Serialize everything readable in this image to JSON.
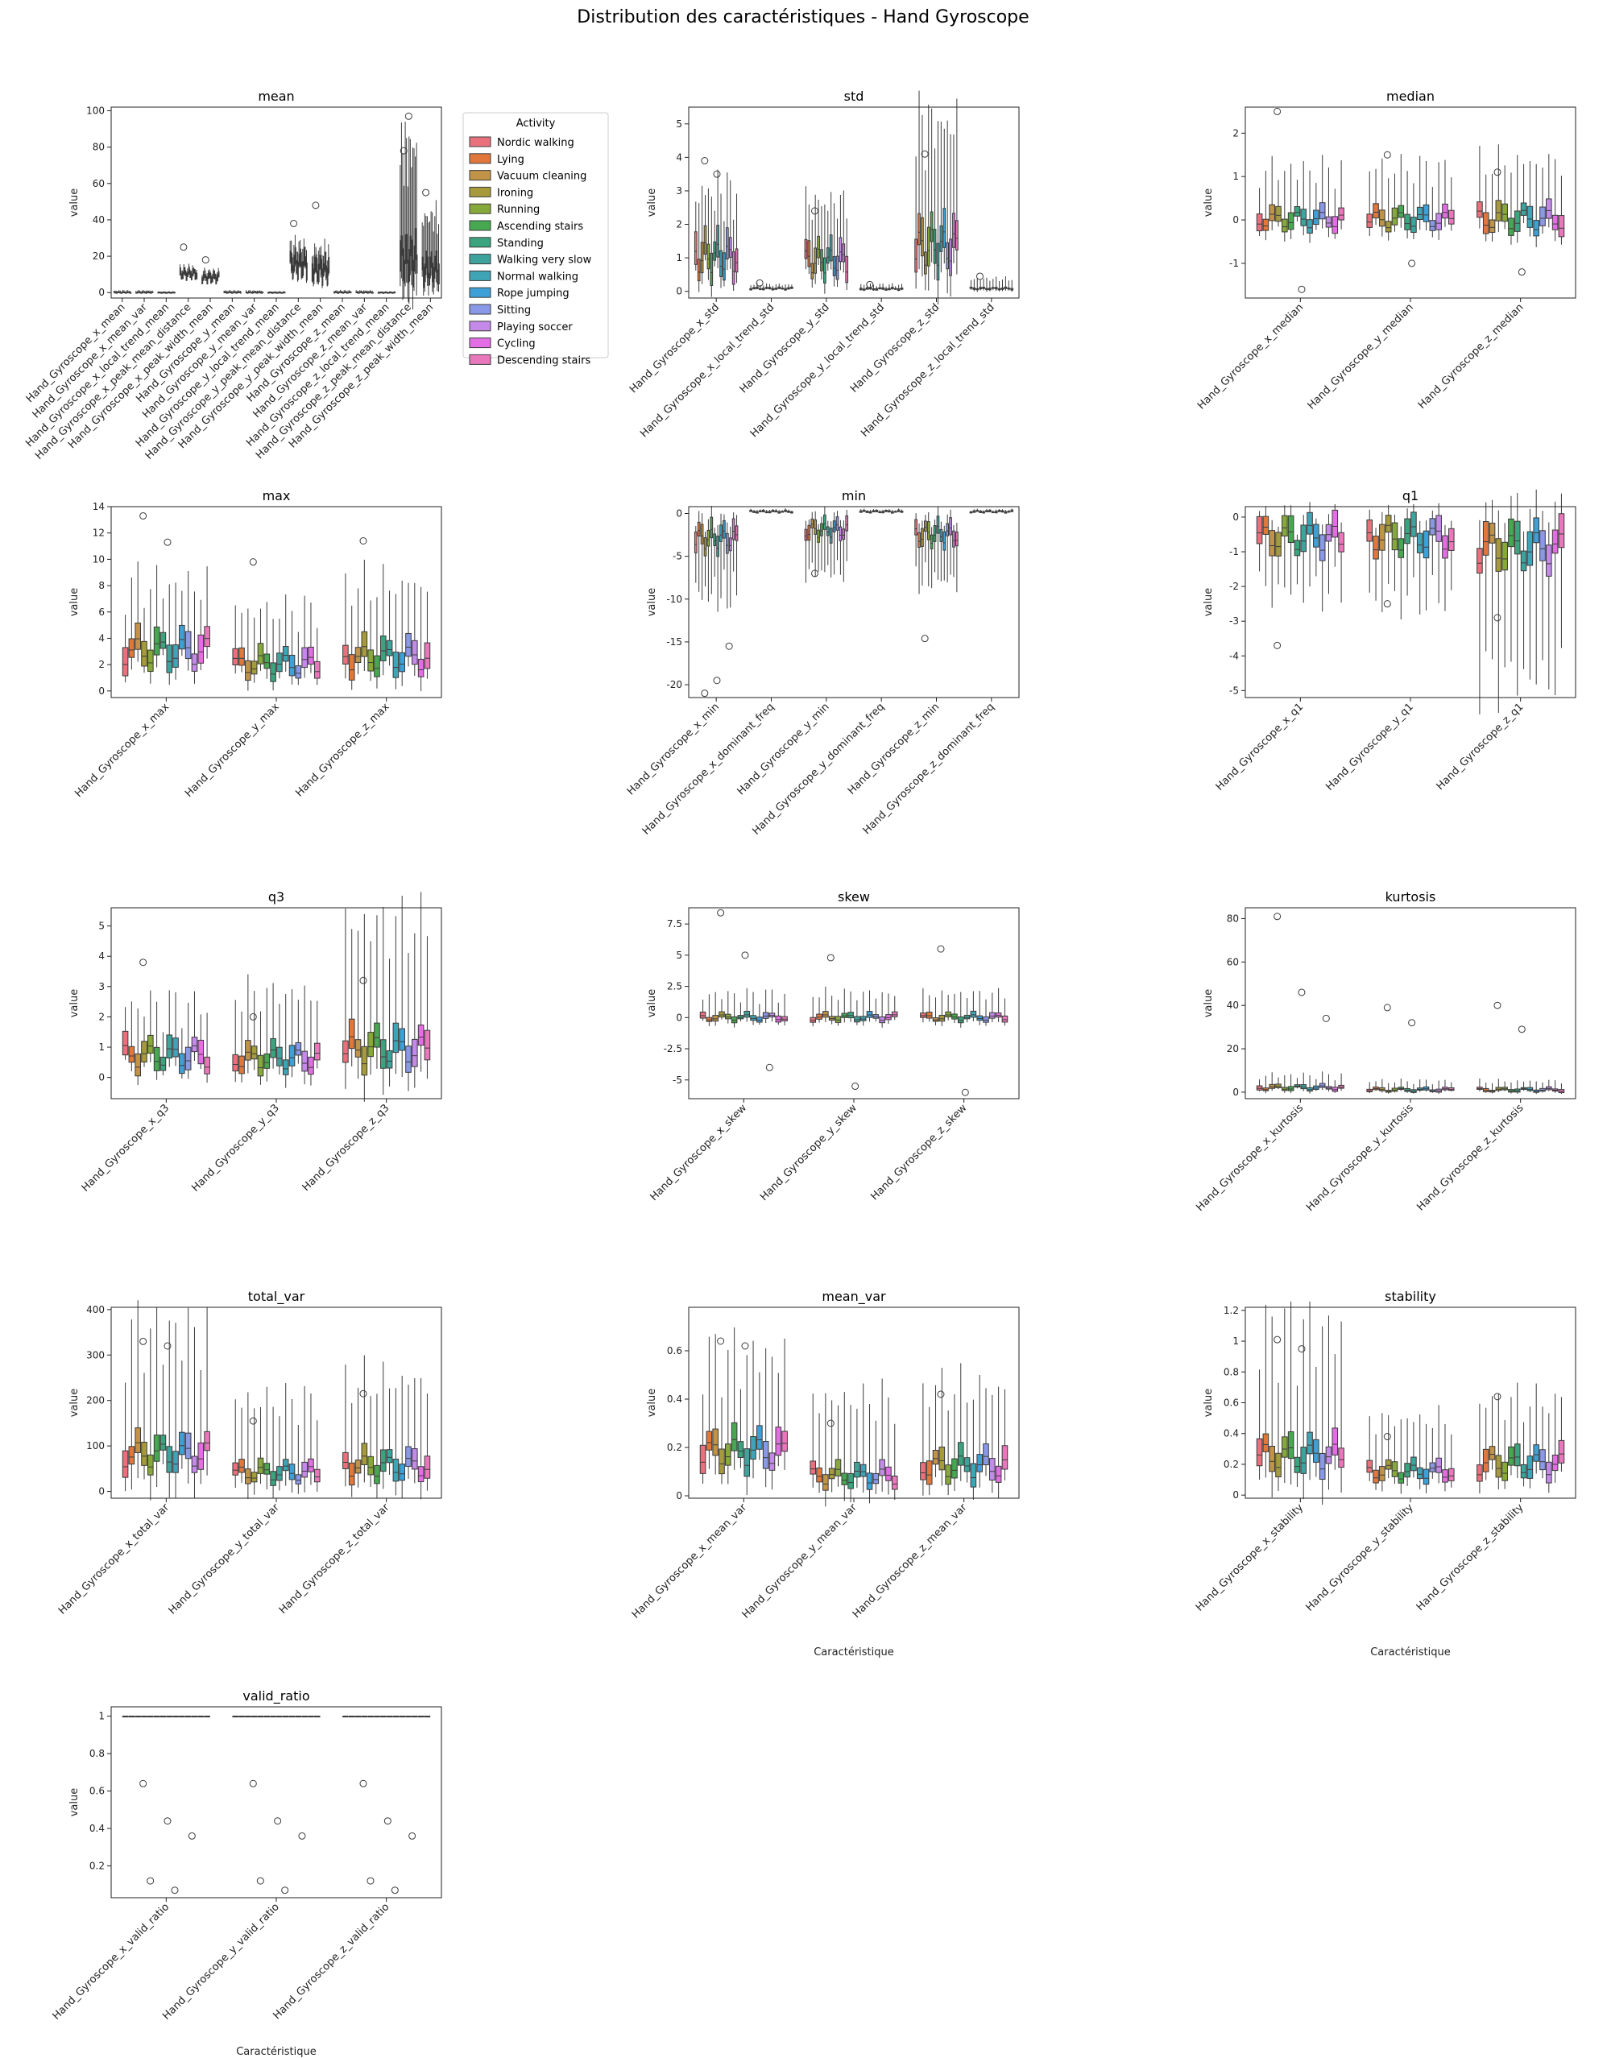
{
  "title": "Distribution des caractéristiques - Hand Gyroscope",
  "legend": {
    "title": "Activity",
    "entries": [
      {
        "name": "Nordic walking",
        "color": "#e9717d"
      },
      {
        "name": "Lying",
        "color": "#e0783c"
      },
      {
        "name": "Vacuum cleaning",
        "color": "#c09347"
      },
      {
        "name": "Ironing",
        "color": "#a69b3a"
      },
      {
        "name": "Running",
        "color": "#87a83b"
      },
      {
        "name": "Ascending stairs",
        "color": "#46a851"
      },
      {
        "name": "Standing",
        "color": "#3ba47e"
      },
      {
        "name": "Walking very slow",
        "color": "#3ea39d"
      },
      {
        "name": "Normal walking",
        "color": "#3fa5b6"
      },
      {
        "name": "Rope jumping",
        "color": "#3da0d6"
      },
      {
        "name": "Sitting",
        "color": "#8a98e8"
      },
      {
        "name": "Playing soccer",
        "color": "#c38ae8"
      },
      {
        "name": "Cycling",
        "color": "#e36ee3"
      },
      {
        "name": "Descending stairs",
        "color": "#e878bb"
      }
    ]
  },
  "chart_data": [
    {
      "type": "box",
      "title": "mean",
      "ylabel": "value",
      "xlabel": "",
      "ylim": [
        -3,
        102
      ],
      "yticks": [
        0,
        20,
        40,
        60,
        80,
        100
      ],
      "categories": [
        "Hand_Gyroscope_x_mean",
        "Hand_Gyroscope_x_mean_var",
        "Hand_Gyroscope_x_local_trend_mean",
        "Hand_Gyroscope_x_peak_mean_distance",
        "Hand_Gyroscope_x_peak_width_mean",
        "Hand_Gyroscope_y_mean",
        "Hand_Gyroscope_y_mean_var",
        "Hand_Gyroscope_y_local_trend_mean",
        "Hand_Gyroscope_y_peak_mean_distance",
        "Hand_Gyroscope_y_peak_width_mean",
        "Hand_Gyroscope_z_mean",
        "Hand_Gyroscope_z_mean_var",
        "Hand_Gyroscope_z_local_trend_mean",
        "Hand_Gyroscope_z_peak_mean_distance",
        "Hand_Gyroscope_z_peak_width_mean"
      ],
      "medians": [
        0,
        0,
        0,
        10,
        8,
        0,
        0,
        0,
        15,
        12,
        0,
        0,
        0,
        17,
        12
      ],
      "spreads": [
        0.5,
        0.5,
        0.3,
        4,
        4,
        0.5,
        0.5,
        0.3,
        10,
        10,
        0.5,
        0.5,
        0.3,
        18,
        12
      ],
      "whiskers": [
        1,
        1,
        0.5,
        12,
        10,
        1,
        1,
        0.5,
        22,
        20,
        1,
        1,
        0.5,
        80,
        40
      ],
      "outliers": [
        [],
        [],
        [],
        [
          25
        ],
        [
          18
        ],
        [],
        [],
        [],
        [
          38
        ],
        [
          48
        ],
        [],
        [],
        [],
        [
          78,
          97
        ],
        [
          55
        ]
      ]
    },
    {
      "type": "box",
      "title": "std",
      "ylabel": "value",
      "xlabel": "",
      "ylim": [
        -0.2,
        5.5
      ],
      "yticks": [
        0,
        1,
        2,
        3,
        4,
        5
      ],
      "categories": [
        "Hand_Gyroscope_x_std",
        "Hand_Gyroscope_x_local_trend_std",
        "Hand_Gyroscope_y_std",
        "Hand_Gyroscope_y_local_trend_std",
        "Hand_Gyroscope_z_std",
        "Hand_Gyroscope_z_local_trend_std"
      ],
      "medians": [
        1.0,
        0.08,
        0.9,
        0.07,
        1.3,
        0.08
      ],
      "spreads": [
        1.0,
        0.05,
        0.8,
        0.05,
        1.2,
        0.05
      ],
      "whiskers": [
        2.8,
        0.2,
        2.5,
        0.2,
        5.0,
        0.4
      ],
      "outliers": [
        [
          3.9,
          3.5
        ],
        [
          0.25
        ],
        [
          2.4
        ],
        [
          0.2
        ],
        [
          4.1
        ],
        [
          0.45
        ]
      ]
    },
    {
      "type": "box",
      "title": "median",
      "ylabel": "value",
      "xlabel": "",
      "ylim": [
        -1.8,
        2.6
      ],
      "yticks": [
        -1,
        0,
        1,
        2
      ],
      "categories": [
        "Hand_Gyroscope_x_median",
        "Hand_Gyroscope_y_median",
        "Hand_Gyroscope_z_median"
      ],
      "medians": [
        0,
        0,
        0
      ],
      "spreads": [
        0.4,
        0.4,
        0.5
      ],
      "whiskers": [
        1.2,
        1.2,
        1.3
      ],
      "outliers": [
        [
          2.5,
          -1.6
        ],
        [
          1.5,
          -1.0
        ],
        [
          1.1,
          -1.2
        ]
      ]
    },
    {
      "type": "box",
      "title": "max",
      "ylabel": "value",
      "xlabel": "",
      "ylim": [
        -0.5,
        14
      ],
      "yticks": [
        0,
        2,
        4,
        6,
        8,
        10,
        12,
        14
      ],
      "categories": [
        "Hand_Gyroscope_x_max",
        "Hand_Gyroscope_y_max",
        "Hand_Gyroscope_z_max"
      ],
      "medians": [
        3.0,
        2.0,
        2.5
      ],
      "spreads": [
        2.2,
        1.6,
        2.0
      ],
      "whiskers": [
        8.0,
        6.0,
        8.0
      ],
      "outliers": [
        [
          13.3,
          11.3
        ],
        [
          9.8
        ],
        [
          11.4
        ]
      ]
    },
    {
      "type": "box",
      "title": "min",
      "ylabel": "value",
      "xlabel": "",
      "ylim": [
        -21.5,
        0.8
      ],
      "yticks": [
        -20,
        -15,
        -10,
        -5,
        0
      ],
      "categories": [
        "Hand_Gyroscope_x_min",
        "Hand_Gyroscope_x_dominant_freq",
        "Hand_Gyroscope_y_min",
        "Hand_Gyroscope_y_dominant_freq",
        "Hand_Gyroscope_z_min",
        "Hand_Gyroscope_z_dominant_freq"
      ],
      "medians": [
        -3.0,
        0.2,
        -2.0,
        0.2,
        -2.5,
        0.2
      ],
      "spreads": [
        2.5,
        0.2,
        1.8,
        0.2,
        2.2,
        0.2
      ],
      "whiskers": [
        -10,
        0.4,
        -7,
        0.4,
        -8,
        0.4
      ],
      "outliers": [
        [
          -21,
          -19.5,
          -15.5
        ],
        [],
        [
          -7
        ],
        [],
        [
          -14.6
        ],
        []
      ]
    },
    {
      "type": "box",
      "title": "q1",
      "ylabel": "value",
      "xlabel": "",
      "ylim": [
        -5.2,
        0.3
      ],
      "yticks": [
        -5,
        -4,
        -3,
        -2,
        -1,
        0
      ],
      "categories": [
        "Hand_Gyroscope_x_q1",
        "Hand_Gyroscope_y_q1",
        "Hand_Gyroscope_z_q1"
      ],
      "medians": [
        -0.6,
        -0.6,
        -0.9
      ],
      "spreads": [
        0.8,
        0.8,
        1.0
      ],
      "whiskers": [
        -2.2,
        -2.4,
        -5.0
      ],
      "outliers": [
        [
          -3.7
        ],
        [
          -2.5
        ],
        [
          -2.9
        ]
      ]
    },
    {
      "type": "box",
      "title": "q3",
      "ylabel": "value",
      "xlabel": "",
      "ylim": [
        -0.7,
        5.6
      ],
      "yticks": [
        0,
        1,
        2,
        3,
        4,
        5
      ],
      "categories": [
        "Hand_Gyroscope_x_q3",
        "Hand_Gyroscope_y_q3",
        "Hand_Gyroscope_z_q3"
      ],
      "medians": [
        0.7,
        0.6,
        0.9
      ],
      "spreads": [
        0.8,
        0.7,
        1.0
      ],
      "whiskers": [
        2.3,
        2.8,
        5.3
      ],
      "outliers": [
        [
          3.8
        ],
        [
          2.0
        ],
        [
          3.2
        ]
      ]
    },
    {
      "type": "box",
      "title": "skew",
      "ylabel": "value",
      "xlabel": "",
      "ylim": [
        -6.5,
        8.8
      ],
      "yticks": [
        -5.0,
        -2.5,
        0.0,
        2.5,
        5.0,
        7.5
      ],
      "categories": [
        "Hand_Gyroscope_x_skew",
        "Hand_Gyroscope_y_skew",
        "Hand_Gyroscope_z_skew"
      ],
      "medians": [
        0,
        0,
        0
      ],
      "spreads": [
        0.5,
        0.5,
        0.5
      ],
      "whiskers": [
        2.0,
        2.0,
        2.0
      ],
      "outliers": [
        [
          8.4,
          5.0,
          -4.0
        ],
        [
          4.8,
          -5.5
        ],
        [
          5.5,
          -6.0
        ]
      ]
    },
    {
      "type": "box",
      "title": "kurtosis",
      "ylabel": "value",
      "xlabel": "",
      "ylim": [
        -3,
        85
      ],
      "yticks": [
        0,
        20,
        40,
        60,
        80
      ],
      "categories": [
        "Hand_Gyroscope_x_kurtosis",
        "Hand_Gyroscope_y_kurtosis",
        "Hand_Gyroscope_z_kurtosis"
      ],
      "medians": [
        2,
        1,
        1
      ],
      "spreads": [
        2,
        1.5,
        1.5
      ],
      "whiskers": [
        8,
        5,
        5
      ],
      "outliers": [
        [
          81,
          46,
          34
        ],
        [
          39,
          32
        ],
        [
          40,
          29
        ]
      ]
    },
    {
      "type": "box",
      "title": "total_var",
      "ylabel": "value",
      "xlabel": "",
      "ylim": [
        -15,
        405
      ],
      "yticks": [
        0,
        100,
        200,
        300,
        400
      ],
      "categories": [
        "Hand_Gyroscope_x_total_var",
        "Hand_Gyroscope_y_total_var",
        "Hand_Gyroscope_z_total_var"
      ],
      "medians": [
        80,
        40,
        55
      ],
      "spreads": [
        60,
        35,
        50
      ],
      "whiskers": [
        380,
        210,
        250
      ],
      "outliers": [
        [
          330,
          320
        ],
        [
          155
        ],
        [
          215
        ]
      ]
    },
    {
      "type": "box",
      "title": "mean_var",
      "ylabel": "value",
      "xlabel": "Caractéristique",
      "ylim": [
        -0.01,
        0.78
      ],
      "yticks": [
        0.0,
        0.2,
        0.4,
        0.6
      ],
      "categories": [
        "Hand_Gyroscope_x_mean_var",
        "Hand_Gyroscope_y_mean_var",
        "Hand_Gyroscope_z_mean_var"
      ],
      "medians": [
        0.18,
        0.08,
        0.12
      ],
      "spreads": [
        0.12,
        0.07,
        0.1
      ],
      "whiskers": [
        0.6,
        0.42,
        0.45
      ],
      "outliers": [
        [
          0.64,
          0.62
        ],
        [
          0.3
        ],
        [
          0.42
        ]
      ]
    },
    {
      "type": "box",
      "title": "stability",
      "ylabel": "value",
      "xlabel": "Caractéristique",
      "ylim": [
        -0.02,
        1.22
      ],
      "yticks": [
        0.0,
        0.2,
        0.4,
        0.6,
        0.8,
        1.0,
        1.2
      ],
      "categories": [
        "Hand_Gyroscope_x_stability",
        "Hand_Gyroscope_y_stability",
        "Hand_Gyroscope_z_stability"
      ],
      "medians": [
        0.25,
        0.15,
        0.2
      ],
      "spreads": [
        0.18,
        0.1,
        0.15
      ],
      "whiskers": [
        1.15,
        0.5,
        0.6
      ],
      "outliers": [
        [
          1.01,
          0.95
        ],
        [
          0.38
        ],
        [
          0.64
        ]
      ]
    },
    {
      "type": "box",
      "title": "valid_ratio",
      "ylabel": "value",
      "xlabel": "Caractéristique",
      "ylim": [
        0.03,
        1.05
      ],
      "yticks": [
        0.2,
        0.4,
        0.6,
        0.8,
        1.0
      ],
      "categories": [
        "Hand_Gyroscope_x_valid_ratio",
        "Hand_Gyroscope_y_valid_ratio",
        "Hand_Gyroscope_z_valid_ratio"
      ],
      "medians": [
        1.0,
        1.0,
        1.0
      ],
      "spreads": [
        0,
        0,
        0
      ],
      "whiskers": [
        1.0,
        1.0,
        1.0
      ],
      "outliers": [
        [
          0.64,
          0.44,
          0.36,
          0.12,
          0.07
        ],
        [
          0.64,
          0.44,
          0.36,
          0.12,
          0.07
        ],
        [
          0.64,
          0.44,
          0.36,
          0.12,
          0.07
        ]
      ]
    }
  ]
}
